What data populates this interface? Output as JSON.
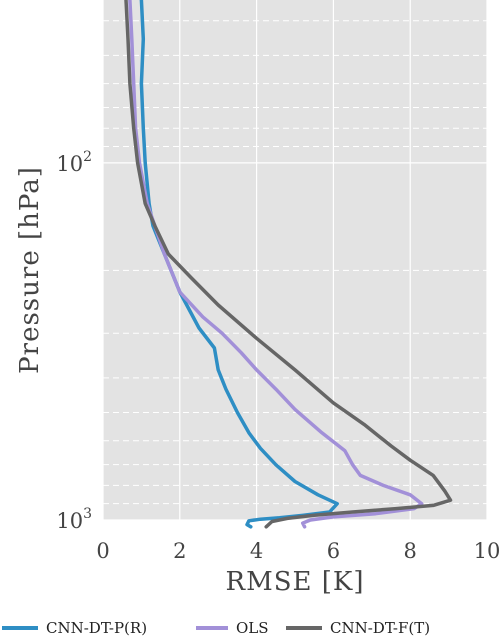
{
  "chart_data": {
    "type": "line",
    "xlabel": "RMSE [K]",
    "ylabel": "Pressure [hPa]",
    "xlim": [
      0,
      10
    ],
    "ylim": [
      1000,
      35
    ],
    "yscale": "log",
    "x_ticks": [
      {
        "value": 0,
        "label": "0"
      },
      {
        "value": 2,
        "label": "2"
      },
      {
        "value": 4,
        "label": "4"
      },
      {
        "value": 6,
        "label": "6"
      },
      {
        "value": 8,
        "label": "8"
      },
      {
        "value": 10,
        "label": "10"
      }
    ],
    "y_ticks": [
      {
        "value": 100,
        "base": "10",
        "exp": "2"
      },
      {
        "value": 1000,
        "base": "10",
        "exp": "3"
      }
    ],
    "y_minor_ticks": [
      40,
      50,
      60,
      70,
      80,
      90,
      200,
      300,
      400,
      500,
      600,
      700,
      800,
      900
    ],
    "grid": true,
    "background": "#e3e3e3",
    "legend_position": "bottom",
    "series": [
      {
        "name": "CNN-DT-P(R)",
        "color": "#2e8ec4",
        "points": [
          [
            1.0,
            35
          ],
          [
            1.05,
            45
          ],
          [
            1.0,
            60
          ],
          [
            1.05,
            80
          ],
          [
            1.1,
            100
          ],
          [
            1.2,
            130
          ],
          [
            1.3,
            150
          ],
          [
            1.6,
            180
          ],
          [
            2.0,
            230
          ],
          [
            2.5,
            290
          ],
          [
            2.9,
            330
          ],
          [
            3.0,
            380
          ],
          [
            3.2,
            430
          ],
          [
            3.5,
            500
          ],
          [
            3.8,
            570
          ],
          [
            4.1,
            630
          ],
          [
            4.5,
            700
          ],
          [
            5.0,
            780
          ],
          [
            5.6,
            850
          ],
          [
            6.1,
            900
          ],
          [
            5.9,
            950
          ],
          [
            5.2,
            970
          ],
          [
            4.6,
            985
          ],
          [
            4.1,
            995
          ],
          [
            3.8,
            1005
          ],
          [
            3.75,
            1030
          ],
          [
            3.85,
            1045
          ]
        ]
      },
      {
        "name": "OLS",
        "color": "#a290d8",
        "points": [
          [
            0.7,
            35
          ],
          [
            0.75,
            45
          ],
          [
            0.8,
            60
          ],
          [
            0.85,
            80
          ],
          [
            0.95,
            100
          ],
          [
            1.15,
            130
          ],
          [
            1.35,
            150
          ],
          [
            1.6,
            180
          ],
          [
            2.0,
            230
          ],
          [
            2.6,
            270
          ],
          [
            3.1,
            300
          ],
          [
            3.6,
            340
          ],
          [
            4.0,
            380
          ],
          [
            4.5,
            430
          ],
          [
            5.0,
            490
          ],
          [
            5.7,
            570
          ],
          [
            6.3,
            640
          ],
          [
            6.5,
            700
          ],
          [
            6.7,
            750
          ],
          [
            7.3,
            800
          ],
          [
            8.0,
            850
          ],
          [
            8.3,
            900
          ],
          [
            8.1,
            930
          ],
          [
            7.1,
            960
          ],
          [
            6.0,
            980
          ],
          [
            5.4,
            1000
          ],
          [
            5.2,
            1020
          ],
          [
            5.25,
            1045
          ]
        ]
      },
      {
        "name": "CNN-DT-F(T)",
        "color": "#666666",
        "points": [
          [
            0.6,
            35
          ],
          [
            0.65,
            45
          ],
          [
            0.7,
            60
          ],
          [
            0.8,
            80
          ],
          [
            0.9,
            100
          ],
          [
            1.1,
            130
          ],
          [
            1.35,
            150
          ],
          [
            1.7,
            180
          ],
          [
            2.3,
            210
          ],
          [
            3.0,
            250
          ],
          [
            4.0,
            310
          ],
          [
            5.0,
            380
          ],
          [
            6.0,
            470
          ],
          [
            6.8,
            540
          ],
          [
            7.5,
            620
          ],
          [
            8.0,
            680
          ],
          [
            8.6,
            750
          ],
          [
            8.9,
            830
          ],
          [
            9.05,
            880
          ],
          [
            8.6,
            910
          ],
          [
            7.6,
            930
          ],
          [
            6.5,
            950
          ],
          [
            5.5,
            970
          ],
          [
            4.8,
            990
          ],
          [
            4.4,
            1010
          ],
          [
            4.25,
            1045
          ]
        ]
      }
    ]
  }
}
